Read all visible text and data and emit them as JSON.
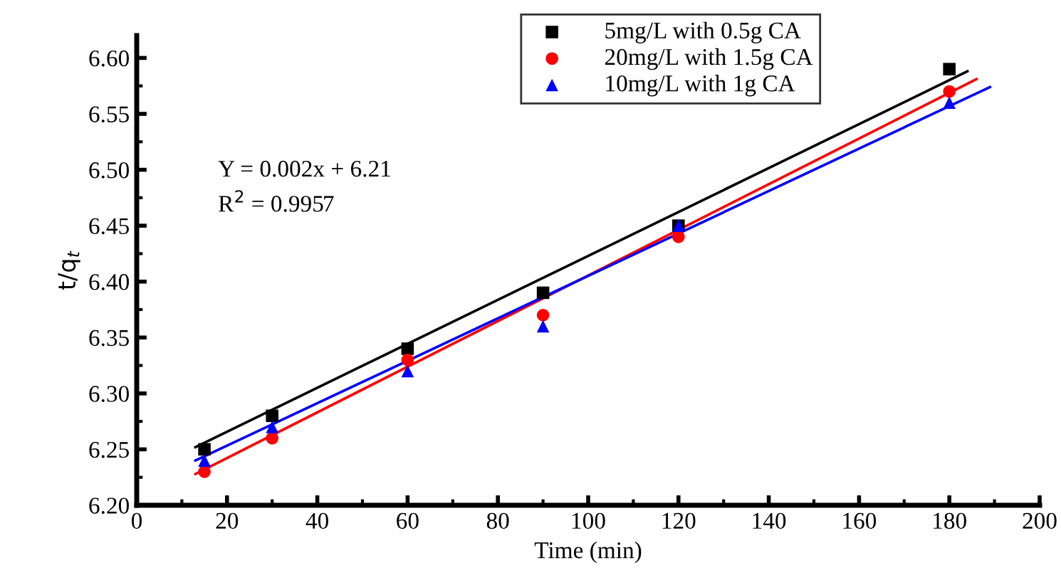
{
  "chart_data": {
    "type": "scatter",
    "xlabel": "Time (min)",
    "ylabel": "t/q$_{t}$",
    "x": [
      15,
      30,
      60,
      90,
      120,
      180
    ],
    "xlim": [
      0,
      200
    ],
    "xticks": [
      0,
      20,
      40,
      60,
      80,
      100,
      120,
      140,
      160,
      180,
      200
    ],
    "ylim": [
      6.2,
      6.62
    ],
    "yticks": [
      {
        "value": 6.2,
        "label": "6.20"
      },
      6.25,
      {
        "value": 6.3,
        "label": "6.30"
      },
      6.35,
      {
        "value": 6.4,
        "label": "6.40"
      },
      6.45,
      {
        "value": 6.5,
        "label": "6.50"
      },
      6.55,
      {
        "value": 6.6,
        "label": "6.60"
      }
    ],
    "grid": false,
    "legend": "top right",
    "annotations": [
      "Y = 0.002x + 6.21",
      "R$^{2}$ = 0.9957"
    ],
    "series": [
      {
        "name": "5mg/L with 0.5g CA",
        "color": "#000000",
        "marker": "square",
        "values": [
          6.25,
          6.28,
          6.34,
          6.39,
          6.45,
          6.59
        ]
      },
      {
        "name": "20mg/L with 1.5g CA",
        "color": "#ff0000",
        "marker": "circle",
        "values": [
          6.23,
          6.26,
          6.33,
          6.37,
          6.44,
          6.57
        ]
      },
      {
        "name": "10mg/L with 1g CA",
        "color": "#0000ff",
        "marker": "triangle",
        "values": [
          6.24,
          6.27,
          6.32,
          6.36,
          6.45,
          6.56
        ]
      },
      {
        "type": "line",
        "color": "#000000",
        "x": [
          13,
          184
        ],
        "values": [
          6.252,
          6.588
        ]
      },
      {
        "type": "line",
        "color": "#ff0000",
        "x": [
          13,
          186
        ],
        "values": [
          6.228,
          6.581
        ]
      },
      {
        "type": "line",
        "color": "#0000ff",
        "x": [
          13,
          189
        ],
        "values": [
          6.24,
          6.574
        ]
      }
    ]
  }
}
